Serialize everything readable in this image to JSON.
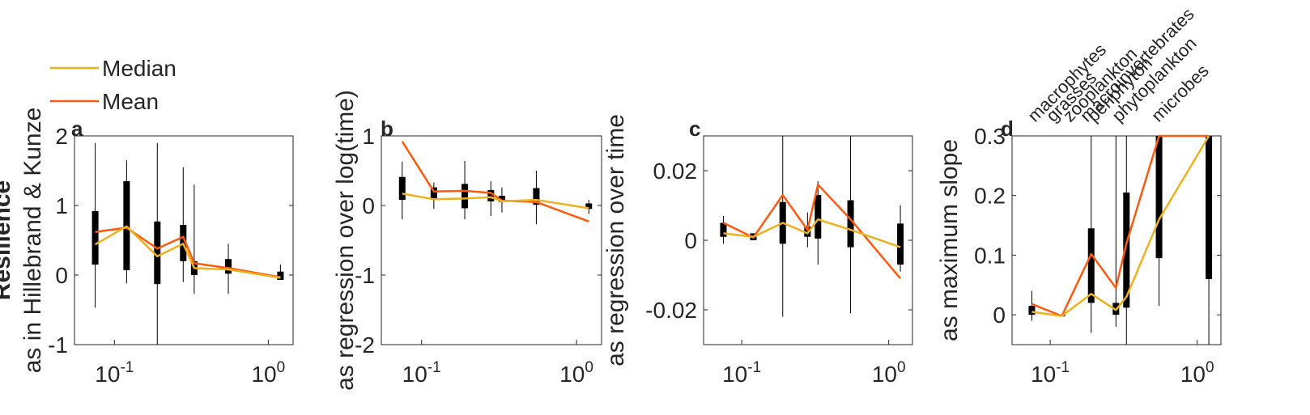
{
  "legend": {
    "items": [
      {
        "label": "Median",
        "color": "#EDB120"
      },
      {
        "label": "Mean",
        "color": "#FF5A10"
      }
    ]
  },
  "colors": {
    "median": "#EDB120",
    "mean": "#FF5A10",
    "box": "#000000",
    "axis": "#262626"
  },
  "chart_data": [
    {
      "type": "box",
      "panel_label": "a",
      "title": "",
      "xlabel": "",
      "ylabel_bold": "Resilience",
      "ylabel": "as in Hillebrand & Kunze",
      "xscale": "log",
      "xlim": [
        0.055,
        1.45
      ],
      "ylim": [
        -1,
        2
      ],
      "yticks": [
        -1,
        0,
        1,
        2
      ],
      "ytick_labels": [
        "-1",
        "0",
        "1",
        "2"
      ],
      "xticks": [
        {
          "value": 0.1,
          "base": "10",
          "exp": "-1"
        },
        {
          "value": 1,
          "base": "10",
          "exp": "0"
        }
      ],
      "x": [
        0.075,
        0.12,
        0.19,
        0.28,
        0.33,
        0.55,
        1.2
      ],
      "boxes": [
        {
          "q1": 0.15,
          "q3": 0.92,
          "wlo": -0.47,
          "whi": 1.9
        },
        {
          "q1": 0.07,
          "q3": 1.35,
          "wlo": -0.12,
          "whi": 1.65
        },
        {
          "q1": -0.13,
          "q3": 0.77,
          "wlo": -1.0,
          "whi": 1.9
        },
        {
          "q1": 0.2,
          "q3": 0.72,
          "wlo": -0.1,
          "whi": 1.55
        },
        {
          "q1": 0.0,
          "q3": 0.2,
          "wlo": -0.27,
          "whi": 1.3
        },
        {
          "q1": 0.02,
          "q3": 0.23,
          "wlo": -0.27,
          "whi": 0.45
        },
        {
          "q1": -0.07,
          "q3": 0.05,
          "wlo": -0.07,
          "whi": 0.15
        }
      ],
      "series": [
        {
          "name": "Mean",
          "values": [
            0.62,
            0.68,
            0.38,
            0.55,
            0.17,
            0.1,
            -0.03
          ]
        },
        {
          "name": "Median",
          "values": [
            0.44,
            0.7,
            0.27,
            0.45,
            0.1,
            0.08,
            -0.04
          ]
        }
      ]
    },
    {
      "type": "box",
      "panel_label": "b",
      "title": "",
      "xlabel": "",
      "ylabel": "as regression over log(time)",
      "xscale": "log",
      "xlim": [
        0.055,
        1.45
      ],
      "ylim": [
        -2,
        1
      ],
      "yticks": [
        -2,
        -1,
        0,
        1
      ],
      "ytick_labels": [
        "-2",
        "-1",
        "0",
        "1"
      ],
      "xticks": [
        {
          "value": 0.1,
          "base": "10",
          "exp": "-1"
        },
        {
          "value": 1,
          "base": "10",
          "exp": "0"
        }
      ],
      "x": [
        0.075,
        0.12,
        0.19,
        0.28,
        0.33,
        0.55,
        1.2
      ],
      "boxes": [
        {
          "q1": 0.08,
          "q3": 0.41,
          "wlo": -0.2,
          "whi": 0.63
        },
        {
          "q1": 0.08,
          "q3": 0.26,
          "wlo": -0.05,
          "whi": 0.33
        },
        {
          "q1": -0.04,
          "q3": 0.31,
          "wlo": -0.2,
          "whi": 0.64
        },
        {
          "q1": 0.06,
          "q3": 0.22,
          "wlo": -0.15,
          "whi": 0.35
        },
        {
          "q1": 0.05,
          "q3": 0.14,
          "wlo": -0.1,
          "whi": 0.26
        },
        {
          "q1": 0.01,
          "q3": 0.25,
          "wlo": -0.27,
          "whi": 0.5
        },
        {
          "q1": -0.05,
          "q3": 0.03,
          "wlo": -0.12,
          "whi": 0.08
        }
      ],
      "series": [
        {
          "name": "Mean",
          "values": [
            0.92,
            0.2,
            0.21,
            0.18,
            0.07,
            0.05,
            -0.23
          ]
        },
        {
          "name": "Median",
          "values": [
            0.17,
            0.09,
            0.1,
            0.12,
            0.06,
            0.08,
            -0.04
          ]
        }
      ]
    },
    {
      "type": "box",
      "panel_label": "c",
      "title": "",
      "xlabel": "",
      "ylabel": "as regression over time",
      "xscale": "log",
      "xlim": [
        0.055,
        1.45
      ],
      "ylim": [
        -0.03,
        0.03
      ],
      "yticks": [
        -0.02,
        0,
        0.02
      ],
      "ytick_labels": [
        "-0.02",
        "0",
        "0.02"
      ],
      "xticks": [
        {
          "value": 0.1,
          "base": "10",
          "exp": "-1"
        },
        {
          "value": 1,
          "base": "10",
          "exp": "0"
        }
      ],
      "x": [
        0.075,
        0.12,
        0.19,
        0.28,
        0.33,
        0.55,
        1.2
      ],
      "boxes": [
        {
          "q1": 0.001,
          "q3": 0.005,
          "wlo": -0.001,
          "whi": 0.007
        },
        {
          "q1": 0.0,
          "q3": 0.002,
          "wlo": 0.0,
          "whi": 0.002
        },
        {
          "q1": -0.001,
          "q3": 0.011,
          "wlo": -0.022,
          "whi": 0.03
        },
        {
          "q1": 0.001,
          "q3": 0.004,
          "wlo": -0.002,
          "whi": 0.008
        },
        {
          "q1": 0.0005,
          "q3": 0.013,
          "wlo": -0.007,
          "whi": 0.017
        },
        {
          "q1": -0.002,
          "q3": 0.0115,
          "wlo": -0.021,
          "whi": 0.03
        },
        {
          "q1": -0.007,
          "q3": 0.0048,
          "wlo": -0.009,
          "whi": 0.01
        }
      ],
      "series": [
        {
          "name": "Mean",
          "values": [
            0.005,
            0.0008,
            0.013,
            0.003,
            0.016,
            0.006,
            -0.011
          ]
        },
        {
          "name": "Median",
          "values": [
            0.002,
            0.001,
            0.005,
            0.002,
            0.006,
            0.003,
            -0.002
          ]
        }
      ]
    },
    {
      "type": "box",
      "panel_label": "d",
      "title": "",
      "xlabel": "",
      "ylabel": "as maximum slope",
      "xscale": "log",
      "xlim": [
        0.055,
        1.45
      ],
      "ylim": [
        -0.05,
        0.3
      ],
      "yticks": [
        0,
        0.1,
        0.2,
        0.3
      ],
      "ytick_labels": [
        "0",
        "0.1",
        "0.2",
        "0.3"
      ],
      "xticks": [
        {
          "value": 0.1,
          "base": "10",
          "exp": "-1"
        },
        {
          "value": 1,
          "base": "10",
          "exp": "0"
        }
      ],
      "x": [
        0.075,
        0.12,
        0.19,
        0.28,
        0.33,
        0.55,
        1.2
      ],
      "category_labels": [
        "macrophytes",
        "grasses",
        "zooplankton",
        "macroinvertebrates",
        "periphyton",
        "phytoplankton",
        "microbes"
      ],
      "category_label_x": [
        0.075,
        0.1,
        0.13,
        0.17,
        0.19,
        0.28,
        0.52
      ],
      "boxes": [
        {
          "q1": 0.0,
          "q3": 0.015,
          "wlo": -0.01,
          "whi": 0.04
        },
        {
          "q1": -0.002,
          "q3": 0.0,
          "wlo": -0.003,
          "whi": 0.0
        },
        {
          "q1": 0.02,
          "q3": 0.145,
          "wlo": -0.03,
          "whi": 0.3
        },
        {
          "q1": 0.0,
          "q3": 0.02,
          "wlo": -0.02,
          "whi": 0.3
        },
        {
          "q1": 0.012,
          "q3": 0.205,
          "wlo": -0.05,
          "whi": 0.3
        },
        {
          "q1": 0.095,
          "q3": 0.3,
          "wlo": 0.015,
          "whi": 0.3
        },
        {
          "q1": 0.06,
          "q3": 0.3,
          "wlo": -0.05,
          "whi": 0.3
        }
      ],
      "series": [
        {
          "name": "Mean",
          "values": [
            0.018,
            -0.002,
            0.102,
            0.045,
            0.12,
            0.32,
            0.32
          ]
        },
        {
          "name": "Median",
          "values": [
            0.005,
            -0.002,
            0.035,
            0.008,
            0.03,
            0.16,
            0.3
          ]
        }
      ]
    }
  ]
}
